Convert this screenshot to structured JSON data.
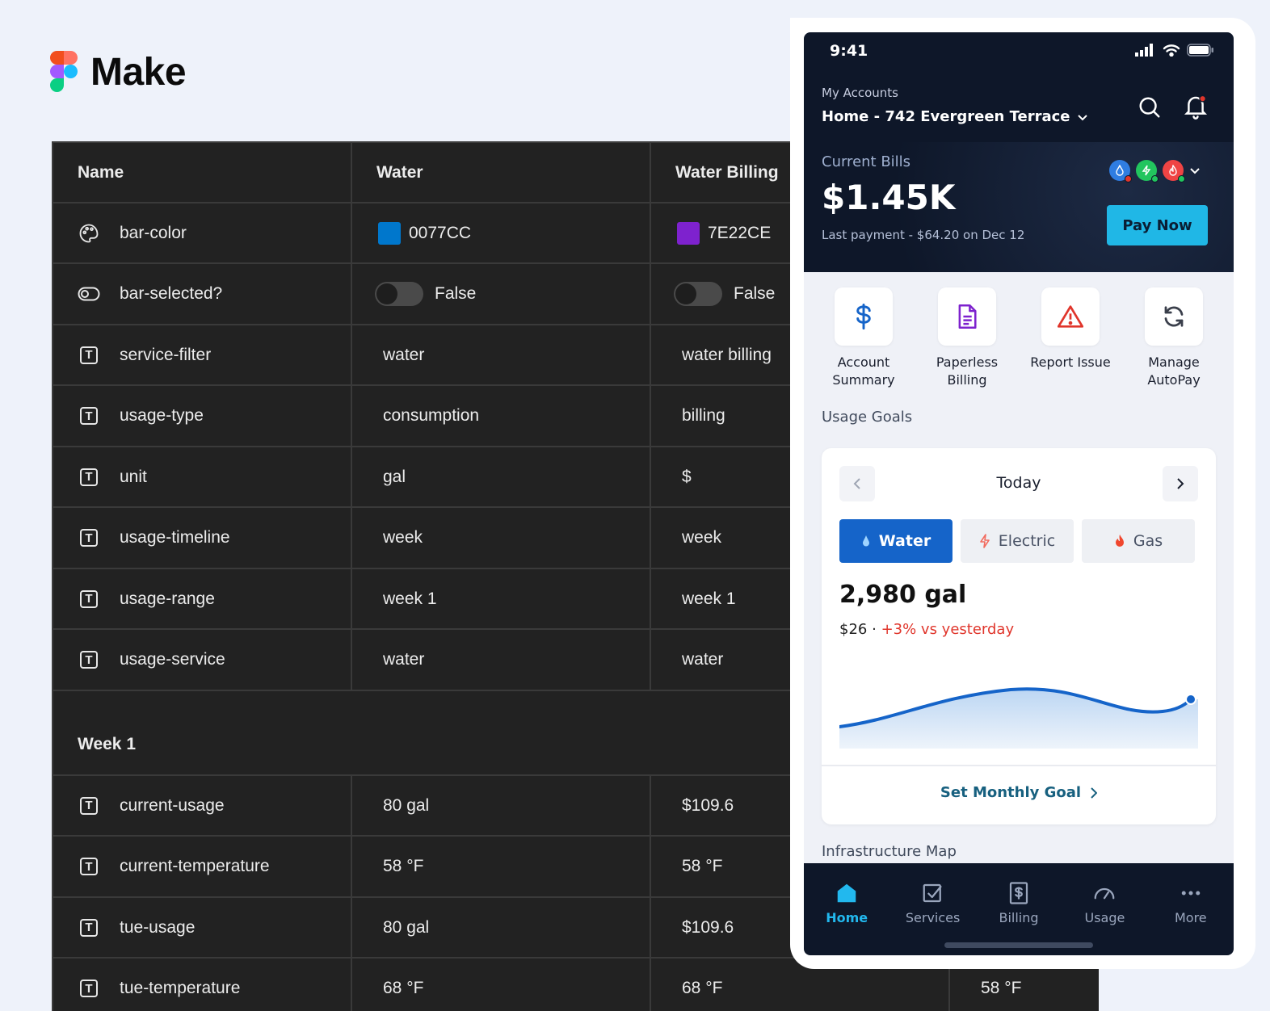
{
  "logo": {
    "text": "Make"
  },
  "table": {
    "headers": [
      "Name",
      "Water",
      "Water Billing"
    ],
    "rows": [
      {
        "icon": "palette-icon",
        "name": "bar-color",
        "water": "0077CC",
        "billing": "7E22CE",
        "water_color": "#0077CC",
        "billing_color": "#7E22CE",
        "kind": "color"
      },
      {
        "icon": "toggle-icon",
        "name": "bar-selected?",
        "water": "False",
        "billing": "False",
        "kind": "boolean"
      },
      {
        "icon": "text-icon",
        "name": "service-filter",
        "water": "water",
        "billing": "water billing"
      },
      {
        "icon": "text-icon",
        "name": "usage-type",
        "water": "consumption",
        "billing": "billing"
      },
      {
        "icon": "text-icon",
        "name": "unit",
        "water": "gal",
        "billing": "$"
      },
      {
        "icon": "text-icon",
        "name": "usage-timeline",
        "water": "week",
        "billing": "week"
      },
      {
        "icon": "text-icon",
        "name": "usage-range",
        "water": "week 1",
        "billing": "week 1"
      },
      {
        "icon": "text-icon",
        "name": "usage-service",
        "water": "water",
        "billing": "water"
      }
    ],
    "section_title": "Week 1",
    "week_rows": [
      {
        "icon": "text-icon",
        "name": "current-usage",
        "water": "80 gal",
        "billing": "$109.6"
      },
      {
        "icon": "text-icon",
        "name": "current-temperature",
        "water": "58 °F",
        "billing": "58 °F"
      },
      {
        "icon": "text-icon",
        "name": "tue-usage",
        "water": "80 gal",
        "billing": "$109.6"
      },
      {
        "icon": "text-icon",
        "name": "tue-temperature",
        "water": "68 °F",
        "billing": "68 °F",
        "extra": "58 °F"
      }
    ]
  },
  "phone": {
    "status_time": "9:41",
    "account_label": "My Accounts",
    "account_name": "Home - 742 Evergreen Terrace",
    "bills": {
      "label": "Current Bills",
      "amount": "$1.45K",
      "last_payment": "Last payment - $64.20 on Dec 12",
      "pay_label": "Pay Now",
      "service_colors": [
        "#2f7de1",
        "#22c55e",
        "#ef4444"
      ]
    },
    "actions": [
      {
        "icon": "dollar-icon",
        "label": "Account\nSummary",
        "color": "#1564c9"
      },
      {
        "icon": "document-icon",
        "label": "Paperless\nBilling",
        "color": "#7e22ce"
      },
      {
        "icon": "warning-icon",
        "label": "Report Issue",
        "color": "#e0352b"
      },
      {
        "icon": "refresh-icon",
        "label": "Manage\nAutoPay",
        "color": "#3a3f4b"
      }
    ],
    "goals": {
      "title": "Usage Goals",
      "period": "Today",
      "tabs": [
        "Water",
        "Electric",
        "Gas"
      ],
      "active_tab": "Water",
      "usage": "2,980 gal",
      "cost": "$26",
      "separator": "·",
      "delta": "+3% vs yesterday",
      "set_goal": "Set Monthly Goal",
      "accent": "#1564c9"
    },
    "infra_title": "Infrastructure Map",
    "tabs": [
      {
        "icon": "home-icon",
        "label": "Home",
        "active": true
      },
      {
        "icon": "services-icon",
        "label": "Services"
      },
      {
        "icon": "billing-icon",
        "label": "Billing"
      },
      {
        "icon": "usage-icon",
        "label": "Usage"
      },
      {
        "icon": "more-icon",
        "label": "More"
      }
    ]
  }
}
